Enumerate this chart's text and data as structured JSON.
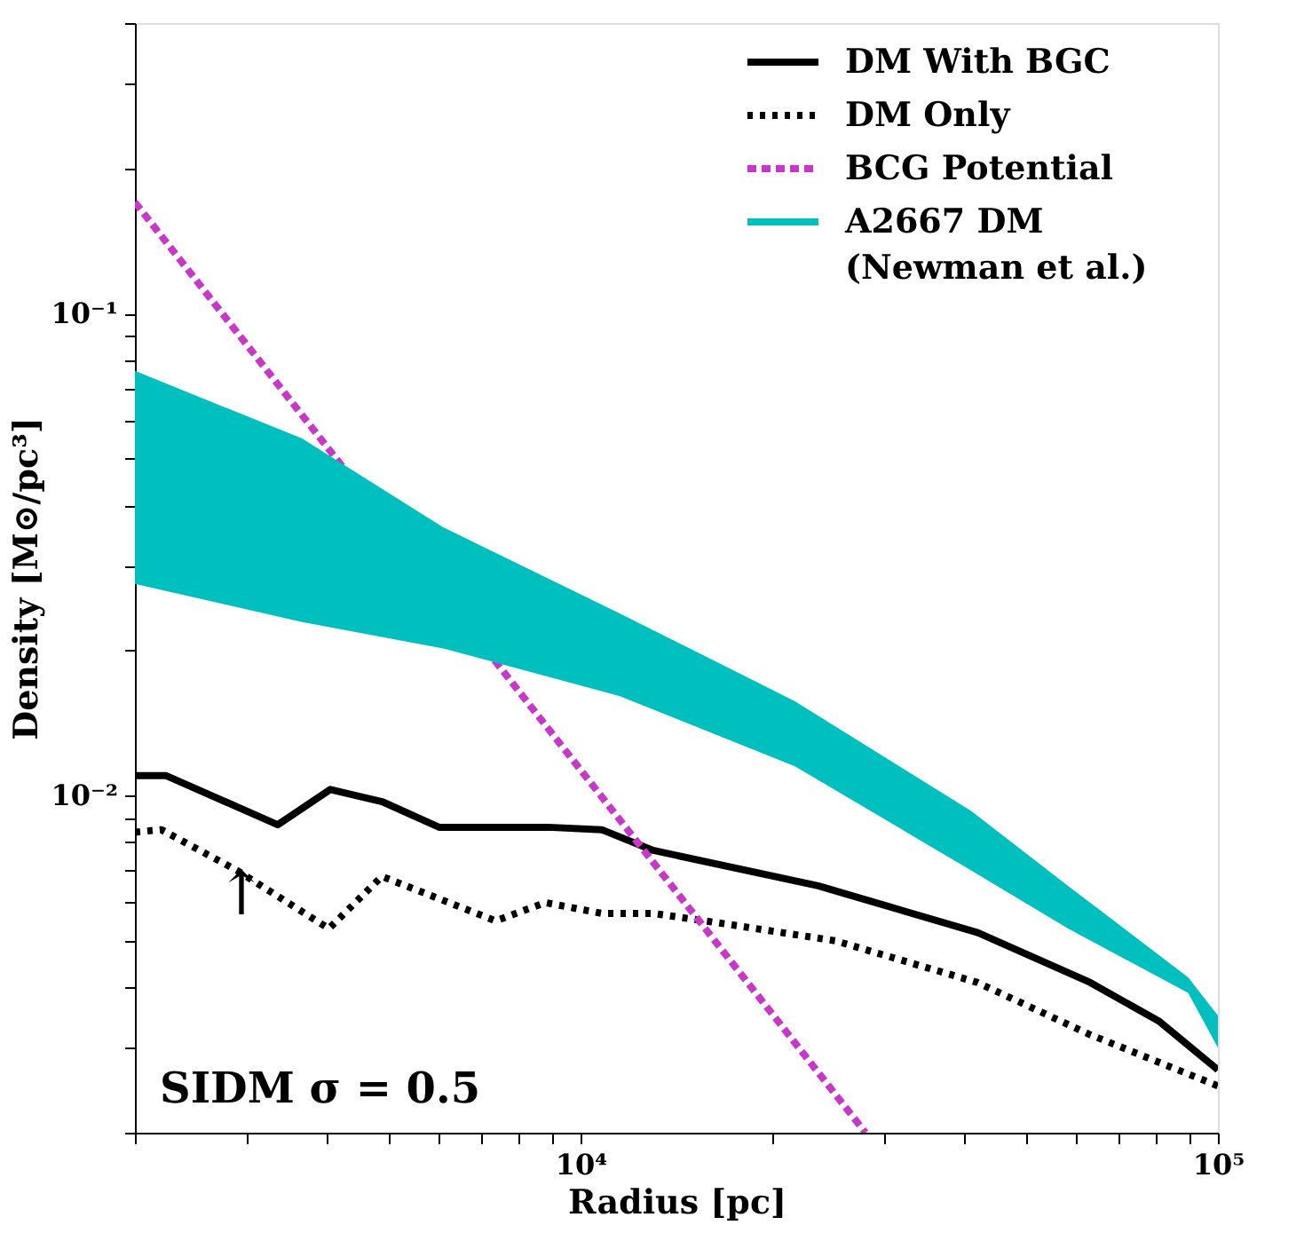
{
  "chart_data": {
    "type": "line",
    "xlabel": "Radius [pc]",
    "ylabel": "Density [M⊙/pc³]",
    "log": "xy",
    "legend": "top right",
    "xlim": [
      2000,
      100000
    ],
    "ylim": [
      0.002,
      0.4
    ],
    "xticks": [
      {
        "value": 2000,
        "label": null
      },
      {
        "value": 3000,
        "label": null
      },
      {
        "value": 4000,
        "label": null
      },
      {
        "value": 5000,
        "label": null
      },
      {
        "value": 6000,
        "label": null
      },
      {
        "value": 7000,
        "label": null
      },
      {
        "value": 8000,
        "label": null
      },
      {
        "value": 9000,
        "label": null
      },
      {
        "value": 10000,
        "label": "10⁴"
      },
      {
        "value": 20000,
        "label": null
      },
      {
        "value": 30000,
        "label": null
      },
      {
        "value": 40000,
        "label": null
      },
      {
        "value": 50000,
        "label": null
      },
      {
        "value": 60000,
        "label": null
      },
      {
        "value": 70000,
        "label": null
      },
      {
        "value": 80000,
        "label": null
      },
      {
        "value": 90000,
        "label": null
      },
      {
        "value": 100000,
        "label": "10⁵"
      }
    ],
    "yticks": [
      {
        "value": 0.002,
        "label": null
      },
      {
        "value": 0.003,
        "label": null
      },
      {
        "value": 0.004,
        "label": null
      },
      {
        "value": 0.005,
        "label": null
      },
      {
        "value": 0.006,
        "label": null
      },
      {
        "value": 0.007,
        "label": null
      },
      {
        "value": 0.008,
        "label": null
      },
      {
        "value": 0.009,
        "label": null
      },
      {
        "value": 0.01,
        "label": "10⁻²"
      },
      {
        "value": 0.02,
        "label": null
      },
      {
        "value": 0.03,
        "label": null
      },
      {
        "value": 0.04,
        "label": null
      },
      {
        "value": 0.05,
        "label": null
      },
      {
        "value": 0.06,
        "label": null
      },
      {
        "value": 0.07,
        "label": null
      },
      {
        "value": 0.08,
        "label": null
      },
      {
        "value": 0.09,
        "label": null
      },
      {
        "value": 0.1,
        "label": "10⁻¹"
      },
      {
        "value": 0.2,
        "label": null
      },
      {
        "value": 0.3,
        "label": null
      },
      {
        "value": 0.4,
        "label": null
      }
    ],
    "series": [
      {
        "name": "DM With BGC",
        "line_style": "solid",
        "color": "#000000",
        "x": [
          2000,
          2240,
          3350,
          4050,
          4900,
          6000,
          8900,
          10800,
          13000,
          23600,
          42000,
          63000,
          81000,
          100000
        ],
        "values": [
          0.011,
          0.011,
          0.0087,
          0.0103,
          0.0097,
          0.0086,
          0.0086,
          0.0085,
          0.0077,
          0.0065,
          0.0052,
          0.0041,
          0.0034,
          0.0027
        ]
      },
      {
        "name": "DM Only",
        "line_style": "dotted",
        "color": "#000000",
        "x": [
          2000,
          2200,
          2890,
          4030,
          4880,
          7360,
          8810,
          10800,
          13000,
          17200,
          25100,
          41900,
          62800,
          100000
        ],
        "values": [
          0.0084,
          0.0085,
          0.007,
          0.0053,
          0.0068,
          0.0055,
          0.006,
          0.0057,
          0.0057,
          0.0054,
          0.005,
          0.0041,
          0.0032,
          0.0025
        ]
      },
      {
        "name": "BCG Potential",
        "line_style": "dashed",
        "color": "#c837c8",
        "x": [
          2000,
          28000
        ],
        "values": [
          0.17,
          0.002
        ]
      },
      {
        "name": "A2667 DM\n(Newman et al.)",
        "type": "area",
        "color": "#00bfbf",
        "x": [
          2000,
          3660,
          6090,
          11500,
          21700,
          41000,
          58200,
          89800,
          100000
        ],
        "values": [
          null,
          null,
          null,
          null,
          null,
          null,
          null,
          null,
          null
        ],
        "lower": [
          0.0275,
          0.0229,
          0.0202,
          0.0161,
          0.0115,
          0.007,
          0.0053,
          0.0039,
          0.003
        ],
        "upper": [
          0.076,
          0.055,
          0.036,
          0.0239,
          0.0157,
          0.0093,
          0.0065,
          0.0042,
          0.0035
        ]
      }
    ],
    "annotations": [
      "SIDM σ = 0.5",
      "↑"
    ]
  }
}
